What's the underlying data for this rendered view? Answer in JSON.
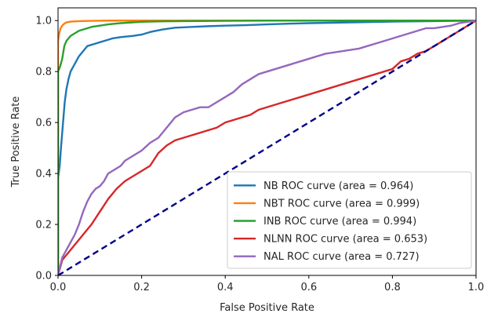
{
  "chart_data": {
    "type": "line",
    "title": "",
    "xlabel": "False Positive Rate",
    "ylabel": "True Positive Rate",
    "xlim": [
      0.0,
      1.0
    ],
    "ylim": [
      0.0,
      1.05
    ],
    "xticks": [
      "0.0",
      "0.2",
      "0.4",
      "0.6",
      "0.8",
      "1.0"
    ],
    "yticks": [
      "0.0",
      "0.2",
      "0.4",
      "0.6",
      "0.8",
      "1.0"
    ],
    "grid": false,
    "legend_position": "lower-right",
    "series": [
      {
        "name": "NB ROC curve (area = 0.964)",
        "color": "#1f77b4",
        "x": [
          0.0,
          0.0,
          0.004,
          0.007,
          0.01,
          0.013,
          0.016,
          0.02,
          0.025,
          0.03,
          0.04,
          0.05,
          0.06,
          0.07,
          0.09,
          0.11,
          0.13,
          0.15,
          0.18,
          0.2,
          0.22,
          0.25,
          0.28,
          0.32,
          0.36,
          0.4,
          0.45,
          0.5,
          0.55,
          0.6,
          0.7,
          0.8,
          0.9,
          1.0
        ],
        "y": [
          0.0,
          0.38,
          0.43,
          0.5,
          0.56,
          0.62,
          0.68,
          0.73,
          0.77,
          0.8,
          0.83,
          0.86,
          0.88,
          0.9,
          0.91,
          0.92,
          0.93,
          0.935,
          0.94,
          0.945,
          0.955,
          0.965,
          0.972,
          0.975,
          0.978,
          0.98,
          0.982,
          0.985,
          0.988,
          0.99,
          0.993,
          0.996,
          0.998,
          1.0
        ]
      },
      {
        "name": "NBT ROC curve (area = 0.999)",
        "color": "#ff7f0e",
        "x": [
          0.0,
          0.0,
          0.003,
          0.006,
          0.01,
          0.015,
          0.02,
          0.03,
          0.05,
          0.08,
          0.12,
          0.2,
          0.3,
          0.5,
          0.7,
          1.0
        ],
        "y": [
          0.0,
          0.92,
          0.95,
          0.97,
          0.98,
          0.988,
          0.993,
          0.996,
          0.998,
          0.999,
          1.0,
          1.0,
          1.0,
          1.0,
          1.0,
          1.0
        ]
      },
      {
        "name": "INB ROC curve (area = 0.994)",
        "color": "#2ca02c",
        "x": [
          0.0,
          0.0,
          0.005,
          0.01,
          0.015,
          0.02,
          0.03,
          0.04,
          0.05,
          0.06,
          0.07,
          0.08,
          0.1,
          0.12,
          0.15,
          0.2,
          0.25,
          0.3,
          0.4,
          0.5,
          0.6,
          0.7,
          0.8,
          0.9,
          1.0
        ],
        "y": [
          0.0,
          0.8,
          0.82,
          0.85,
          0.9,
          0.92,
          0.94,
          0.95,
          0.96,
          0.965,
          0.97,
          0.975,
          0.98,
          0.985,
          0.99,
          0.995,
          0.997,
          0.998,
          0.999,
          1.0,
          1.0,
          1.0,
          1.0,
          1.0,
          1.0
        ]
      },
      {
        "name": "NLNN ROC curve (area = 0.653)",
        "color": "#d62728",
        "x": [
          0.0,
          0.01,
          0.02,
          0.04,
          0.06,
          0.08,
          0.1,
          0.12,
          0.14,
          0.16,
          0.18,
          0.2,
          0.22,
          0.24,
          0.26,
          0.28,
          0.3,
          0.32,
          0.34,
          0.36,
          0.38,
          0.4,
          0.42,
          0.44,
          0.46,
          0.48,
          0.5,
          0.52,
          0.54,
          0.56,
          0.58,
          0.6,
          0.62,
          0.64,
          0.66,
          0.68,
          0.7,
          0.72,
          0.74,
          0.76,
          0.78,
          0.8,
          0.82,
          0.84,
          0.86,
          0.88,
          0.9,
          0.92,
          0.94,
          0.96,
          0.98,
          1.0
        ],
        "y": [
          0.0,
          0.06,
          0.08,
          0.12,
          0.16,
          0.2,
          0.25,
          0.3,
          0.34,
          0.37,
          0.39,
          0.41,
          0.43,
          0.48,
          0.51,
          0.53,
          0.54,
          0.55,
          0.56,
          0.57,
          0.58,
          0.6,
          0.61,
          0.62,
          0.63,
          0.65,
          0.66,
          0.67,
          0.68,
          0.69,
          0.7,
          0.71,
          0.72,
          0.73,
          0.74,
          0.75,
          0.76,
          0.77,
          0.78,
          0.79,
          0.8,
          0.81,
          0.84,
          0.85,
          0.87,
          0.88,
          0.9,
          0.92,
          0.94,
          0.96,
          0.98,
          1.0
        ]
      },
      {
        "name": "NAL ROC curve (area = 0.727)",
        "color": "#9467bd",
        "x": [
          0.0,
          0.01,
          0.02,
          0.03,
          0.04,
          0.05,
          0.06,
          0.07,
          0.08,
          0.09,
          0.1,
          0.11,
          0.12,
          0.13,
          0.14,
          0.15,
          0.16,
          0.18,
          0.2,
          0.22,
          0.24,
          0.26,
          0.28,
          0.3,
          0.32,
          0.34,
          0.36,
          0.38,
          0.4,
          0.42,
          0.44,
          0.46,
          0.48,
          0.5,
          0.52,
          0.54,
          0.56,
          0.58,
          0.6,
          0.62,
          0.64,
          0.66,
          0.68,
          0.7,
          0.72,
          0.74,
          0.76,
          0.78,
          0.8,
          0.82,
          0.84,
          0.86,
          0.88,
          0.9,
          0.92,
          0.94,
          0.96,
          0.98,
          1.0
        ],
        "y": [
          0.0,
          0.07,
          0.1,
          0.13,
          0.16,
          0.2,
          0.25,
          0.29,
          0.32,
          0.34,
          0.35,
          0.37,
          0.4,
          0.41,
          0.42,
          0.43,
          0.45,
          0.47,
          0.49,
          0.52,
          0.54,
          0.58,
          0.62,
          0.64,
          0.65,
          0.66,
          0.66,
          0.68,
          0.7,
          0.72,
          0.75,
          0.77,
          0.79,
          0.8,
          0.81,
          0.82,
          0.83,
          0.84,
          0.85,
          0.86,
          0.87,
          0.875,
          0.88,
          0.885,
          0.89,
          0.9,
          0.91,
          0.92,
          0.93,
          0.94,
          0.95,
          0.96,
          0.97,
          0.97,
          0.975,
          0.98,
          0.99,
          0.995,
          1.0
        ]
      },
      {
        "name": "",
        "color": "#00008b",
        "dashed": true,
        "x": [
          0.0,
          1.0
        ],
        "y": [
          0.0,
          1.0
        ]
      }
    ]
  }
}
